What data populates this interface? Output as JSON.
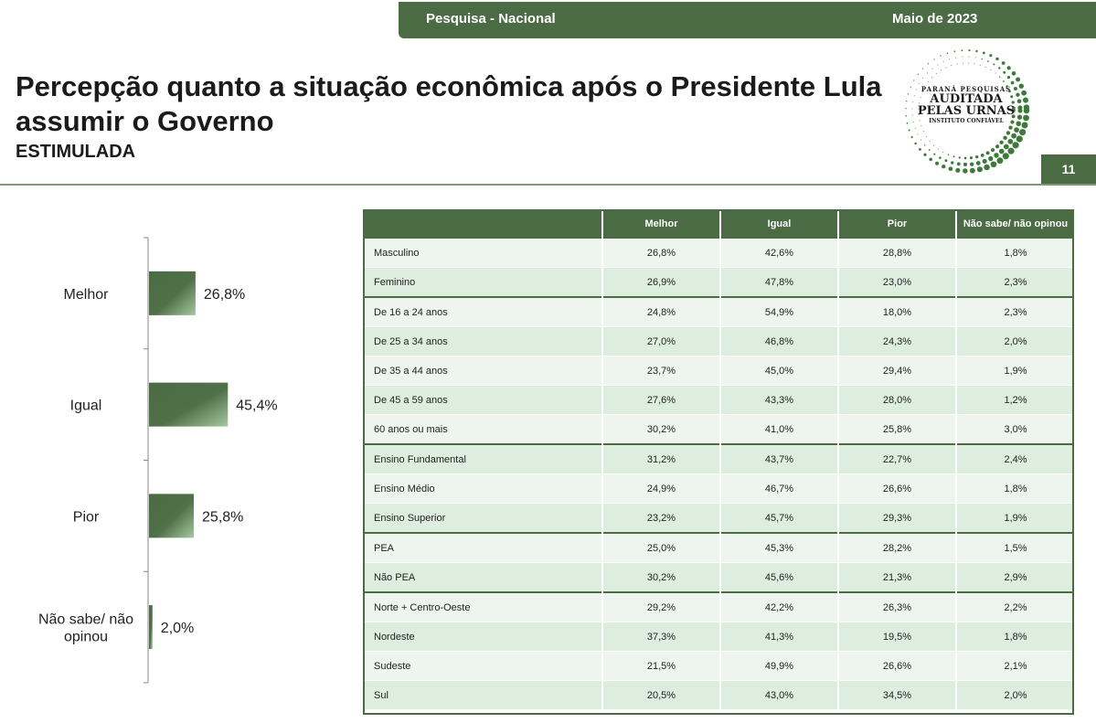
{
  "header": {
    "survey_label": "Pesquisa - Nacional",
    "date_label": "Maio de 2023"
  },
  "title": "Percepção quanto a situação econômica após o Presidente Lula assumir o Governo",
  "subtitle": "ESTIMULADA",
  "page_number": "11",
  "logo": {
    "line1": "PARANÁ PESQUISAS",
    "line2": "AUDITADA",
    "line3": "PELAS URNAS",
    "line4": "INSTITUTO CONFIÁVEL"
  },
  "colors": {
    "brand_green": "#4a6b43",
    "bar_light": "#a7c9a0",
    "row_light": "#eef5ee",
    "row_dark": "#ddeede"
  },
  "chart_data": [
    {
      "type": "bar",
      "orientation": "horizontal",
      "categories": [
        "Melhor",
        "Igual",
        "Pior",
        "Não sabe/ não opinou"
      ],
      "values": [
        26.8,
        45.4,
        25.8,
        2.0
      ],
      "value_labels": [
        "26,8%",
        "45,4%",
        "25,8%",
        "2,0%"
      ],
      "xlim": [
        0,
        100
      ],
      "grid": false,
      "legend": "none"
    },
    {
      "type": "table",
      "columns": [
        "",
        "Melhor",
        "Igual",
        "Pior",
        "Não sabe/ não opinou"
      ],
      "rows": [
        {
          "label": "Masculino",
          "values": [
            "26,8%",
            "42,6%",
            "28,8%",
            "1,8%"
          ],
          "group_start": false
        },
        {
          "label": "Feminino",
          "values": [
            "26,9%",
            "47,8%",
            "23,0%",
            "2,3%"
          ],
          "group_start": false
        },
        {
          "label": "De 16 a 24 anos",
          "values": [
            "24,8%",
            "54,9%",
            "18,0%",
            "2,3%"
          ],
          "group_start": true
        },
        {
          "label": "De 25 a 34 anos",
          "values": [
            "27,0%",
            "46,8%",
            "24,3%",
            "2,0%"
          ],
          "group_start": false
        },
        {
          "label": "De 35 a 44 anos",
          "values": [
            "23,7%",
            "45,0%",
            "29,4%",
            "1,9%"
          ],
          "group_start": false
        },
        {
          "label": "De 45 a 59 anos",
          "values": [
            "27,6%",
            "43,3%",
            "28,0%",
            "1,2%"
          ],
          "group_start": false
        },
        {
          "label": "60 anos ou mais",
          "values": [
            "30,2%",
            "41,0%",
            "25,8%",
            "3,0%"
          ],
          "group_start": false
        },
        {
          "label": "Ensino Fundamental",
          "values": [
            "31,2%",
            "43,7%",
            "22,7%",
            "2,4%"
          ],
          "group_start": true
        },
        {
          "label": "Ensino Médio",
          "values": [
            "24,9%",
            "46,7%",
            "26,6%",
            "1,8%"
          ],
          "group_start": false
        },
        {
          "label": "Ensino Superior",
          "values": [
            "23,2%",
            "45,7%",
            "29,3%",
            "1,9%"
          ],
          "group_start": false
        },
        {
          "label": "PEA",
          "values": [
            "25,0%",
            "45,3%",
            "28,2%",
            "1,5%"
          ],
          "group_start": true
        },
        {
          "label": "Não PEA",
          "values": [
            "30,2%",
            "45,6%",
            "21,3%",
            "2,9%"
          ],
          "group_start": false
        },
        {
          "label": "Norte + Centro-Oeste",
          "values": [
            "29,2%",
            "42,2%",
            "26,3%",
            "2,2%"
          ],
          "group_start": true
        },
        {
          "label": "Nordeste",
          "values": [
            "37,3%",
            "41,3%",
            "19,5%",
            "1,8%"
          ],
          "group_start": false
        },
        {
          "label": "Sudeste",
          "values": [
            "21,5%",
            "49,9%",
            "26,6%",
            "2,1%"
          ],
          "group_start": false
        },
        {
          "label": "Sul",
          "values": [
            "20,5%",
            "43,0%",
            "34,5%",
            "2,0%"
          ],
          "group_start": false
        }
      ]
    }
  ]
}
